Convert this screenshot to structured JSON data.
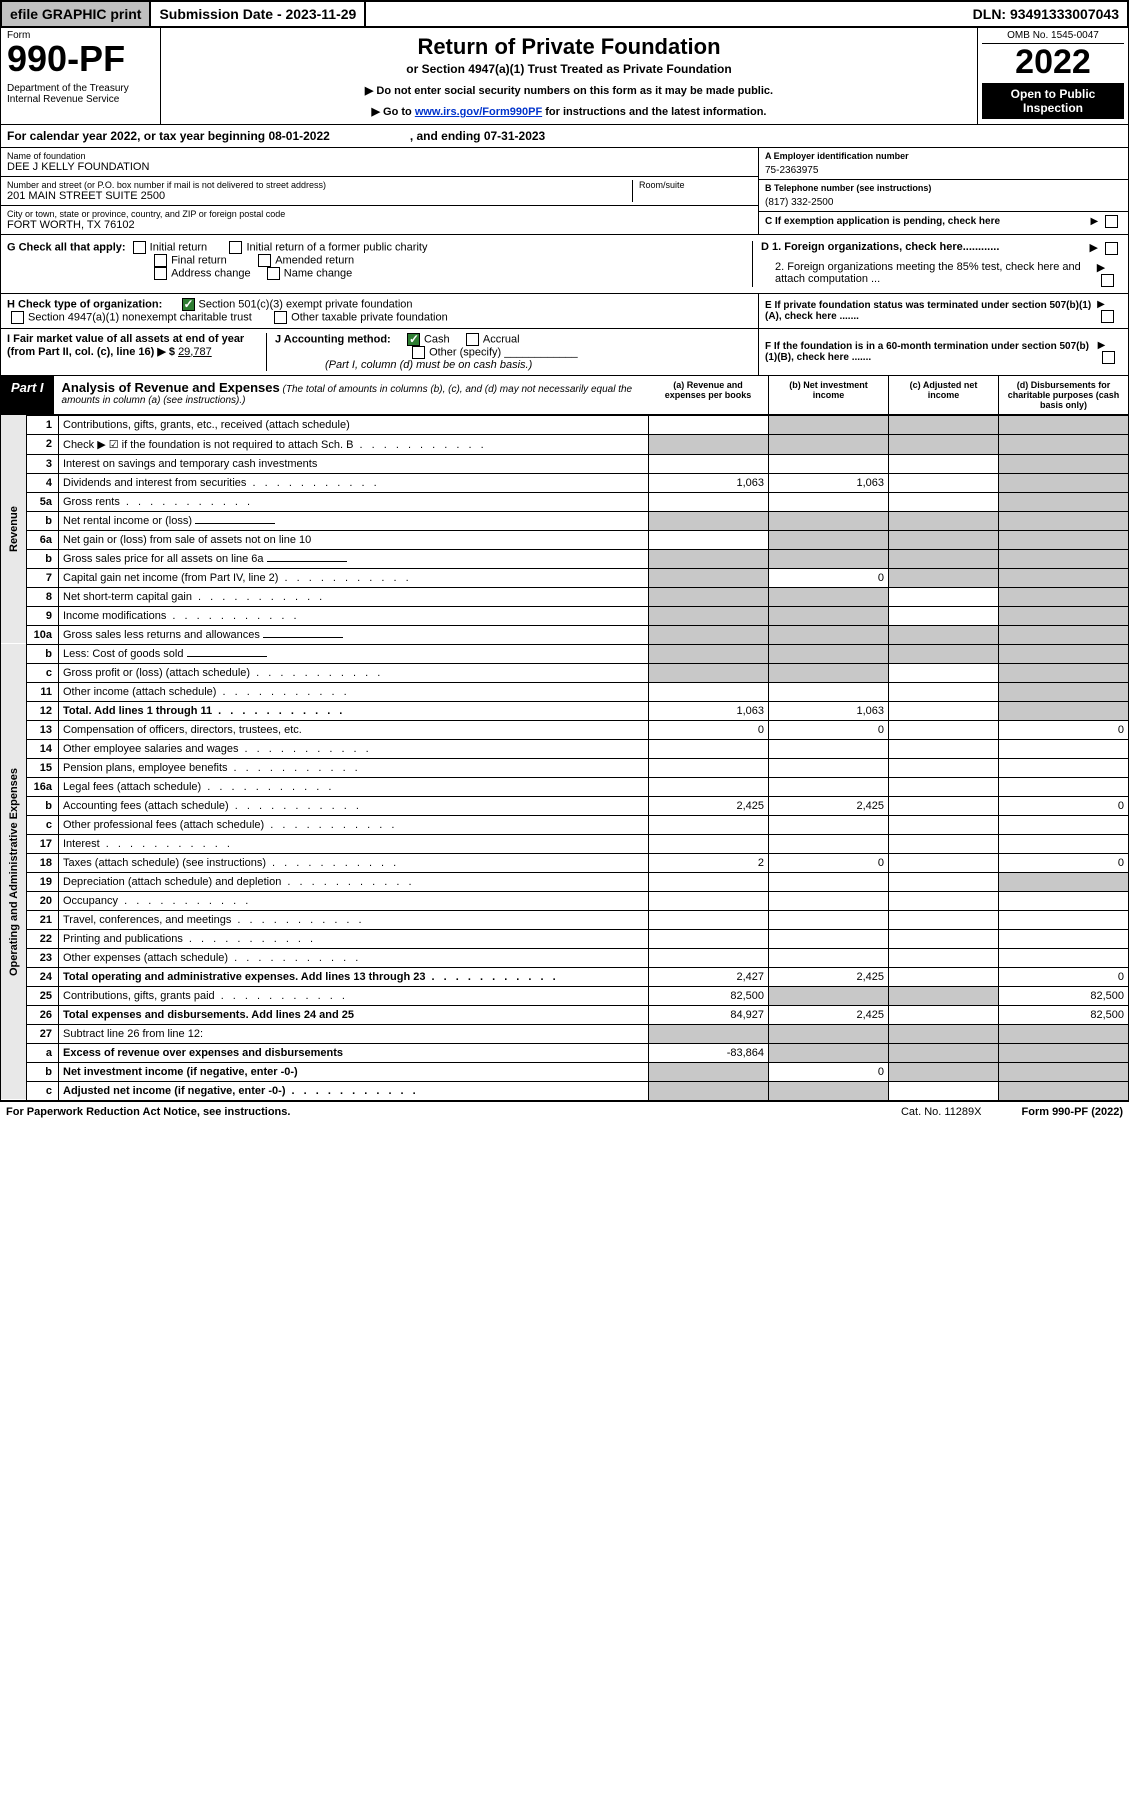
{
  "topbar": {
    "efile": "efile GRAPHIC print",
    "submission": "Submission Date - 2023-11-29",
    "dln": "DLN: 93491333007043"
  },
  "header": {
    "form_word": "Form",
    "form_number": "990-PF",
    "dept": "Department of the Treasury\nInternal Revenue Service",
    "title": "Return of Private Foundation",
    "subtitle": "or Section 4947(a)(1) Trust Treated as Private Foundation",
    "instr1": "▶ Do not enter social security numbers on this form as it may be made public.",
    "instr2_prefix": "▶ Go to ",
    "instr2_link": "www.irs.gov/Form990PF",
    "instr2_suffix": " for instructions and the latest information.",
    "omb": "OMB No. 1545-0047",
    "tax_year": "2022",
    "open_public": "Open to Public Inspection"
  },
  "calendar": "For calendar year 2022, or tax year beginning 08-01-2022                        , and ending 07-31-2023",
  "info": {
    "name_label": "Name of foundation",
    "name": "DEE J KELLY FOUNDATION",
    "addr_label": "Number and street (or P.O. box number if mail is not delivered to street address)",
    "addr": "201 MAIN STREET SUITE 2500",
    "room_label": "Room/suite",
    "city_label": "City or town, state or province, country, and ZIP or foreign postal code",
    "city": "FORT WORTH, TX  76102",
    "a_label": "A Employer identification number",
    "a_value": "75-2363975",
    "b_label": "B Telephone number (see instructions)",
    "b_value": "(817) 332-2500",
    "c_label": "C If exemption application is pending, check here"
  },
  "g": {
    "label": "G Check all that apply:",
    "initial": "Initial return",
    "initial_former": "Initial return of a former public charity",
    "final": "Final return",
    "amended": "Amended return",
    "addr_change": "Address change",
    "name_change": "Name change"
  },
  "d": {
    "d1": "D 1. Foreign organizations, check here............",
    "d2": "2. Foreign organizations meeting the 85% test, check here and attach computation ..."
  },
  "h": {
    "label": "H Check type of organization:",
    "s501": "Section 501(c)(3) exempt private foundation",
    "s4947": "Section 4947(a)(1) nonexempt charitable trust",
    "other_taxable": "Other taxable private foundation"
  },
  "e": "E If private foundation status was terminated under section 507(b)(1)(A), check here .......",
  "i": {
    "prefix": "I Fair market value of all assets at end of year (from Part II, col. (c), line 16) ▶ $",
    "value": "29,787"
  },
  "j": {
    "label": "J Accounting method:",
    "cash": "Cash",
    "accrual": "Accrual",
    "other": "Other (specify)",
    "note": "(Part I, column (d) must be on cash basis.)"
  },
  "f": "F If the foundation is in a 60-month termination under section 507(b)(1)(B), check here .......",
  "part1": {
    "label": "Part I",
    "title": "Analysis of Revenue and Expenses",
    "note": "(The total of amounts in columns (b), (c), and (d) may not necessarily equal the amounts in column (a) (see instructions).)",
    "col_a": "(a) Revenue and expenses per books",
    "col_b": "(b) Net investment income",
    "col_c": "(c) Adjusted net income",
    "col_d": "(d) Disbursements for charitable purposes (cash basis only)"
  },
  "side_labels": {
    "revenue": "Revenue",
    "expenses": "Operating and Administrative Expenses"
  },
  "rows": [
    {
      "n": "1",
      "desc": "Contributions, gifts, grants, etc., received (attach schedule)",
      "a": "",
      "b": "shaded",
      "c": "shaded",
      "d": "shaded"
    },
    {
      "n": "2",
      "desc": "Check ▶ ☑ if the foundation is not required to attach Sch. B",
      "a": "shaded",
      "b": "shaded",
      "c": "shaded",
      "d": "shaded",
      "dots": true
    },
    {
      "n": "3",
      "desc": "Interest on savings and temporary cash investments",
      "a": "",
      "b": "",
      "c": "",
      "d": "shaded"
    },
    {
      "n": "4",
      "desc": "Dividends and interest from securities",
      "a": "1,063",
      "b": "1,063",
      "c": "",
      "d": "shaded",
      "dots": true
    },
    {
      "n": "5a",
      "desc": "Gross rents",
      "a": "",
      "b": "",
      "c": "",
      "d": "shaded",
      "dots": true
    },
    {
      "n": "b",
      "desc": "Net rental income or (loss)",
      "a": "shaded",
      "b": "shaded",
      "c": "shaded",
      "d": "shaded",
      "input": true
    },
    {
      "n": "6a",
      "desc": "Net gain or (loss) from sale of assets not on line 10",
      "a": "",
      "b": "shaded",
      "c": "shaded",
      "d": "shaded"
    },
    {
      "n": "b",
      "desc": "Gross sales price for all assets on line 6a",
      "a": "shaded",
      "b": "shaded",
      "c": "shaded",
      "d": "shaded",
      "input": true
    },
    {
      "n": "7",
      "desc": "Capital gain net income (from Part IV, line 2)",
      "a": "shaded",
      "b": "0",
      "c": "shaded",
      "d": "shaded",
      "dots": true
    },
    {
      "n": "8",
      "desc": "Net short-term capital gain",
      "a": "shaded",
      "b": "shaded",
      "c": "",
      "d": "shaded",
      "dots": true
    },
    {
      "n": "9",
      "desc": "Income modifications",
      "a": "shaded",
      "b": "shaded",
      "c": "",
      "d": "shaded",
      "dots": true
    },
    {
      "n": "10a",
      "desc": "Gross sales less returns and allowances",
      "a": "shaded",
      "b": "shaded",
      "c": "shaded",
      "d": "shaded",
      "input": true
    },
    {
      "n": "b",
      "desc": "Less: Cost of goods sold",
      "a": "shaded",
      "b": "shaded",
      "c": "shaded",
      "d": "shaded",
      "input": true,
      "dots": true
    },
    {
      "n": "c",
      "desc": "Gross profit or (loss) (attach schedule)",
      "a": "shaded",
      "b": "shaded",
      "c": "",
      "d": "shaded",
      "dots": true
    },
    {
      "n": "11",
      "desc": "Other income (attach schedule)",
      "a": "",
      "b": "",
      "c": "",
      "d": "shaded",
      "dots": true
    },
    {
      "n": "12",
      "desc": "Total. Add lines 1 through 11",
      "a": "1,063",
      "b": "1,063",
      "c": "",
      "d": "shaded",
      "bold": true,
      "dots": true
    },
    {
      "n": "13",
      "desc": "Compensation of officers, directors, trustees, etc.",
      "a": "0",
      "b": "0",
      "c": "",
      "d": "0"
    },
    {
      "n": "14",
      "desc": "Other employee salaries and wages",
      "a": "",
      "b": "",
      "c": "",
      "d": "",
      "dots": true
    },
    {
      "n": "15",
      "desc": "Pension plans, employee benefits",
      "a": "",
      "b": "",
      "c": "",
      "d": "",
      "dots": true
    },
    {
      "n": "16a",
      "desc": "Legal fees (attach schedule)",
      "a": "",
      "b": "",
      "c": "",
      "d": "",
      "dots": true
    },
    {
      "n": "b",
      "desc": "Accounting fees (attach schedule)",
      "a": "2,425",
      "b": "2,425",
      "c": "",
      "d": "0",
      "dots": true
    },
    {
      "n": "c",
      "desc": "Other professional fees (attach schedule)",
      "a": "",
      "b": "",
      "c": "",
      "d": "",
      "dots": true
    },
    {
      "n": "17",
      "desc": "Interest",
      "a": "",
      "b": "",
      "c": "",
      "d": "",
      "dots": true
    },
    {
      "n": "18",
      "desc": "Taxes (attach schedule) (see instructions)",
      "a": "2",
      "b": "0",
      "c": "",
      "d": "0",
      "dots": true
    },
    {
      "n": "19",
      "desc": "Depreciation (attach schedule) and depletion",
      "a": "",
      "b": "",
      "c": "",
      "d": "shaded",
      "dots": true
    },
    {
      "n": "20",
      "desc": "Occupancy",
      "a": "",
      "b": "",
      "c": "",
      "d": "",
      "dots": true
    },
    {
      "n": "21",
      "desc": "Travel, conferences, and meetings",
      "a": "",
      "b": "",
      "c": "",
      "d": "",
      "dots": true
    },
    {
      "n": "22",
      "desc": "Printing and publications",
      "a": "",
      "b": "",
      "c": "",
      "d": "",
      "dots": true
    },
    {
      "n": "23",
      "desc": "Other expenses (attach schedule)",
      "a": "",
      "b": "",
      "c": "",
      "d": "",
      "dots": true
    },
    {
      "n": "24",
      "desc": "Total operating and administrative expenses. Add lines 13 through 23",
      "a": "2,427",
      "b": "2,425",
      "c": "",
      "d": "0",
      "bold": true,
      "dots": true
    },
    {
      "n": "25",
      "desc": "Contributions, gifts, grants paid",
      "a": "82,500",
      "b": "shaded",
      "c": "shaded",
      "d": "82,500",
      "dots": true
    },
    {
      "n": "26",
      "desc": "Total expenses and disbursements. Add lines 24 and 25",
      "a": "84,927",
      "b": "2,425",
      "c": "",
      "d": "82,500",
      "bold": true
    },
    {
      "n": "27",
      "desc": "Subtract line 26 from line 12:",
      "a": "shaded",
      "b": "shaded",
      "c": "shaded",
      "d": "shaded"
    },
    {
      "n": "a",
      "desc": "Excess of revenue over expenses and disbursements",
      "a": "-83,864",
      "b": "shaded",
      "c": "shaded",
      "d": "shaded",
      "bold": true
    },
    {
      "n": "b",
      "desc": "Net investment income (if negative, enter -0-)",
      "a": "shaded",
      "b": "0",
      "c": "shaded",
      "d": "shaded",
      "bold": true
    },
    {
      "n": "c",
      "desc": "Adjusted net income (if negative, enter -0-)",
      "a": "shaded",
      "b": "shaded",
      "c": "",
      "d": "shaded",
      "bold": true,
      "dots": true
    }
  ],
  "footer": {
    "left": "For Paperwork Reduction Act Notice, see instructions.",
    "mid": "Cat. No. 11289X",
    "right": "Form 990-PF (2022)"
  }
}
